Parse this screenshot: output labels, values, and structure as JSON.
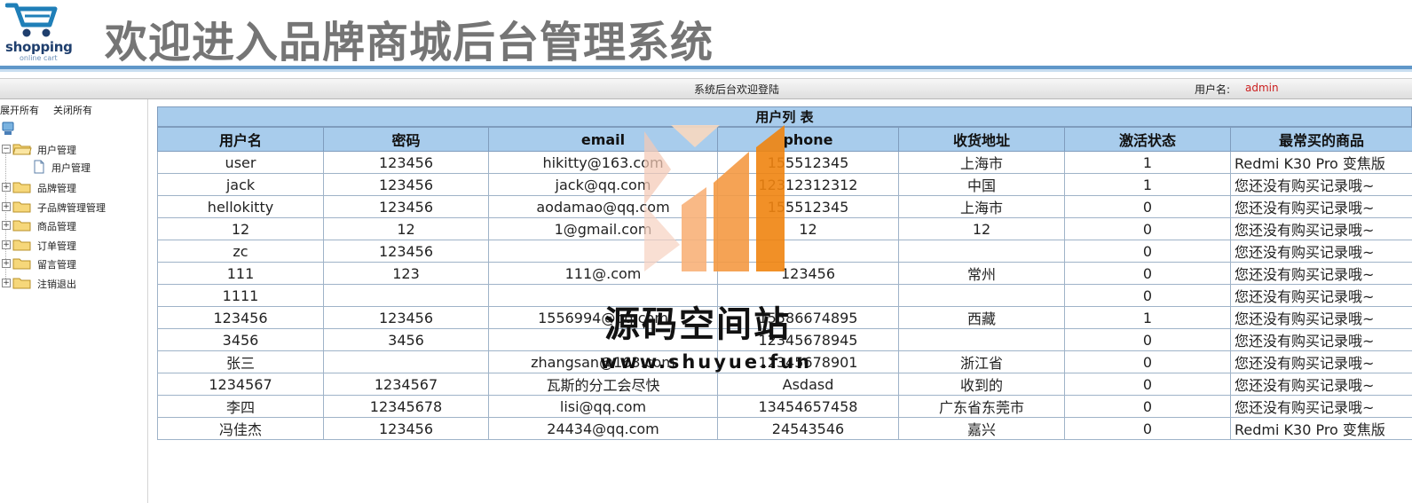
{
  "header": {
    "logo_text": "shopping",
    "logo_sub": "online cart",
    "title": "欢迎进入品牌商城后台管理系统"
  },
  "statusbar": {
    "welcome": "系统后台欢迎登陆",
    "user_label": "用户名:",
    "user_name": "admin"
  },
  "sidebar": {
    "expand_all": "展开所有",
    "collapse_all": "关闭所有",
    "nodes": [
      {
        "label": "用户管理",
        "expander": "⊟"
      },
      {
        "label": "品牌管理",
        "expander": "⊞"
      },
      {
        "label": "子品牌管理管理",
        "expander": "⊞"
      },
      {
        "label": "商品管理",
        "expander": "⊞"
      },
      {
        "label": "订单管理",
        "expander": "⊞"
      },
      {
        "label": "留言管理",
        "expander": "⊞"
      },
      {
        "label": "注销退出",
        "expander": "⊞"
      }
    ],
    "child": {
      "label": "用户管理"
    }
  },
  "table": {
    "caption": "用户列 表",
    "headers": [
      "用户名",
      "密码",
      "email",
      "phone",
      "收货地址",
      "激活状态",
      "最常买的商品"
    ],
    "rows": [
      [
        "user",
        "123456",
        "hikitty@163.com",
        "155512345",
        "上海市",
        "1",
        "Redmi K30 Pro 变焦版"
      ],
      [
        "jack",
        "123456",
        "jack@qq.com",
        "12312312312",
        "中国",
        "1",
        "您还没有购买记录哦~"
      ],
      [
        "hellokitty",
        "123456",
        "aodamao@qq.com",
        "155512345",
        "上海市",
        "0",
        "您还没有购买记录哦~"
      ],
      [
        "12",
        "12",
        "1@gmail.com",
        "12",
        "12",
        "0",
        "您还没有购买记录哦~"
      ],
      [
        "zc",
        "123456",
        "",
        "",
        "",
        "0",
        "您还没有购买记录哦~"
      ],
      [
        "111",
        "123",
        "111@.com",
        "123456",
        "常州",
        "0",
        "您还没有购买记录哦~"
      ],
      [
        "1111",
        "",
        "",
        "",
        "",
        "0",
        "您还没有购买记录哦~"
      ],
      [
        "123456",
        "123456",
        "1556994@qq.com",
        "15586674895",
        "西藏",
        "1",
        "您还没有购买记录哦~"
      ],
      [
        "3456",
        "3456",
        "",
        "12345678945",
        "",
        "0",
        "您还没有购买记录哦~"
      ],
      [
        "张三",
        "",
        "zhangsan@163.com",
        "12345678901",
        "浙江省",
        "0",
        "您还没有购买记录哦~"
      ],
      [
        "1234567",
        "1234567",
        "瓦斯的分工会尽快",
        "Asdasd",
        "收到的",
        "0",
        "您还没有购买记录哦~"
      ],
      [
        "李四",
        "12345678",
        "lisi@qq.com",
        "13454657458",
        "广东省东莞市",
        "0",
        "您还没有购买记录哦~"
      ],
      [
        "冯佳杰",
        "123456",
        "24434@qq.com",
        "24543546",
        "嘉兴",
        "0",
        "Redmi K30 Pro 变焦版"
      ]
    ]
  },
  "watermark": {
    "text": "源码空间站",
    "url": "www.shuyue.fun"
  },
  "colors": {
    "accent_blue": "#5f97c9",
    "table_header": "#a8ccec",
    "user_name": "#cc1f1f",
    "title_gray": "#757575"
  }
}
